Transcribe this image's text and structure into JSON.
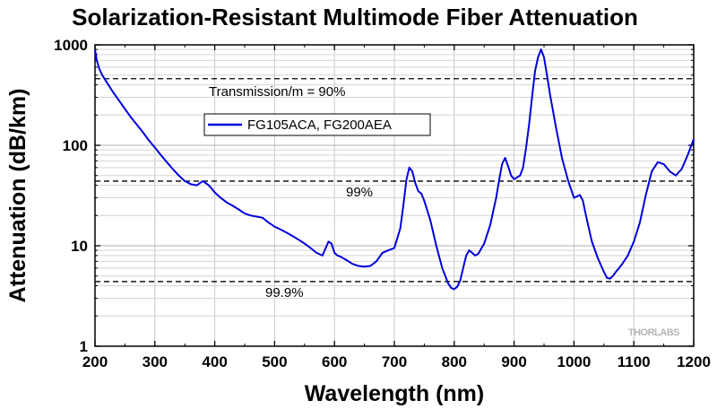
{
  "chart_data": {
    "type": "line",
    "title": "Solarization-Resistant Multimode Fiber Attenuation",
    "xlabel": "Wavelength (nm)",
    "ylabel": "Attenuation (dB/km)",
    "xlim": [
      200,
      1200
    ],
    "ylim": [
      1,
      1000
    ],
    "yscale": "log",
    "grid": true,
    "x_ticks": [
      200,
      300,
      400,
      500,
      600,
      700,
      800,
      900,
      1000,
      1100,
      1200
    ],
    "y_ticks": [
      1,
      10,
      100,
      1000
    ],
    "legend_position": "top-left",
    "series": [
      {
        "name": "FG105ACA, FG200AEA",
        "color": "#0000dd",
        "x": [
          200,
          203,
          207,
          212,
          220,
          230,
          240,
          250,
          260,
          270,
          280,
          290,
          300,
          310,
          320,
          330,
          340,
          350,
          360,
          370,
          380,
          385,
          390,
          395,
          400,
          410,
          420,
          430,
          440,
          450,
          460,
          470,
          480,
          490,
          500,
          510,
          520,
          530,
          540,
          550,
          560,
          570,
          580,
          590,
          595,
          600,
          605,
          610,
          620,
          630,
          640,
          650,
          660,
          670,
          680,
          690,
          700,
          710,
          715,
          720,
          725,
          730,
          735,
          740,
          745,
          750,
          760,
          770,
          780,
          790,
          795,
          800,
          805,
          810,
          815,
          820,
          825,
          830,
          835,
          840,
          850,
          860,
          870,
          875,
          880,
          885,
          890,
          895,
          900,
          910,
          915,
          920,
          925,
          930,
          935,
          940,
          945,
          950,
          955,
          960,
          970,
          980,
          990,
          1000,
          1005,
          1010,
          1015,
          1020,
          1030,
          1040,
          1050,
          1055,
          1060,
          1065,
          1070,
          1080,
          1090,
          1100,
          1110,
          1120,
          1130,
          1140,
          1150,
          1160,
          1170,
          1180,
          1190,
          1200
        ],
        "values": [
          900,
          700,
          580,
          500,
          420,
          340,
          280,
          230,
          190,
          160,
          135,
          112,
          95,
          80,
          68,
          58,
          50,
          44,
          41,
          40,
          44,
          42,
          40,
          37,
          34,
          30,
          27,
          25,
          23,
          21,
          20,
          19.5,
          19,
          17,
          15.5,
          14.5,
          13.5,
          12.5,
          11.5,
          10.5,
          9.5,
          8.5,
          8,
          11,
          10.5,
          8.5,
          8,
          7.8,
          7.2,
          6.6,
          6.3,
          6.2,
          6.3,
          7,
          8.5,
          9,
          9.5,
          15,
          25,
          45,
          60,
          55,
          42,
          35,
          33,
          28,
          18,
          10,
          6,
          4.2,
          3.8,
          3.7,
          3.9,
          4.5,
          6,
          8,
          9,
          8.5,
          8,
          8.3,
          10.5,
          16,
          30,
          45,
          65,
          75,
          62,
          50,
          46,
          50,
          60,
          95,
          160,
          300,
          550,
          750,
          900,
          750,
          500,
          320,
          150,
          75,
          45,
          30,
          31,
          32,
          28,
          20,
          11,
          7.5,
          5.5,
          4.8,
          4.7,
          5,
          5.5,
          6.5,
          8,
          11,
          17,
          32,
          55,
          68,
          65,
          55,
          50,
          58,
          80,
          115
        ]
      }
    ],
    "reference_lines": [
      {
        "value": 460,
        "label": "Transmission/m = 90%"
      },
      {
        "value": 44,
        "label": "99%"
      },
      {
        "value": 4.4,
        "label": "99.9%"
      }
    ],
    "watermark": "THORLABS"
  }
}
